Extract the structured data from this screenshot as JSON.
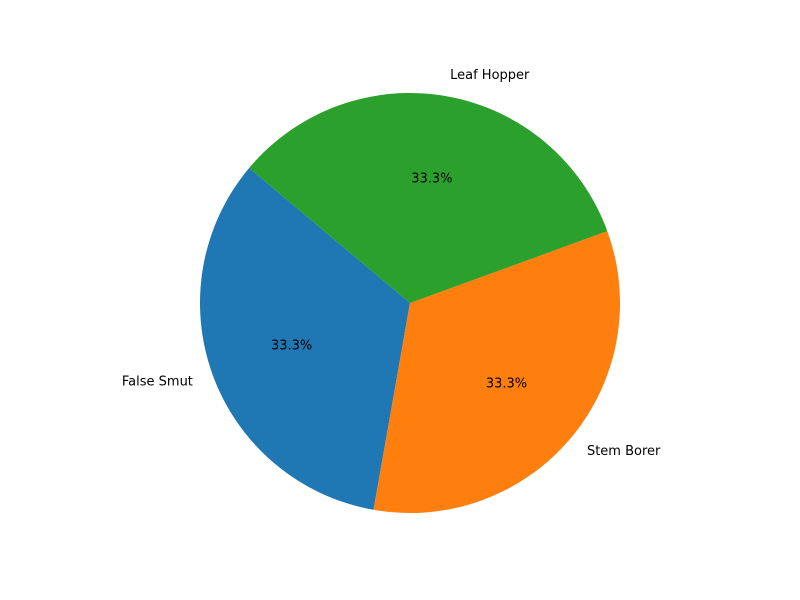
{
  "chart_data": {
    "type": "pie",
    "categories": [
      "False Smut",
      "Stem Borer",
      "Leaf Hopper"
    ],
    "values": [
      33.3,
      33.3,
      33.3
    ],
    "percent_labels": [
      "33.3%",
      "33.3%",
      "33.3%"
    ],
    "colors": [
      "#1f77b4",
      "#ff7f0e",
      "#2ca02c"
    ],
    "start_angle_deg": 140,
    "direction": "counterclockwise",
    "title": ""
  }
}
